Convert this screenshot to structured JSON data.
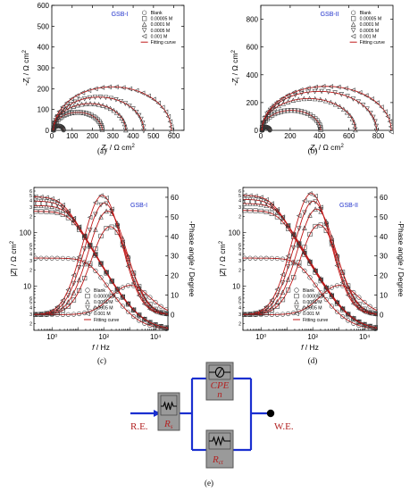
{
  "chart_data": [
    {
      "id": "a",
      "type": "scatter",
      "title": "GSB-I",
      "caption": "(a)",
      "xlim": [
        0,
        650
      ],
      "ylim": [
        0,
        600
      ],
      "xticks": [
        0,
        100,
        200,
        300,
        400,
        500,
        600
      ],
      "yticks": [
        0,
        100,
        200,
        300,
        400,
        500,
        600
      ],
      "xlabel": {
        "base": "Z",
        "sub": "r",
        "rest": " / Ω cm",
        "sup": "2"
      },
      "ylabel": {
        "base": "-Z",
        "sub": "i",
        "rest": " / Ω cm",
        "sup": "2"
      },
      "legend": [
        "Blank",
        "0.00005 M",
        "0.0001 M",
        "0.0005 M",
        "0.001 M",
        "Fitting curve"
      ],
      "series": [
        {
          "x0": 8,
          "r": 25,
          "depress": 0.85
        },
        {
          "x0": 8,
          "r": 120,
          "depress": 0.72
        },
        {
          "x0": 8,
          "r": 178,
          "depress": 0.72
        },
        {
          "x0": 8,
          "r": 222,
          "depress": 0.72
        },
        {
          "x0": 8,
          "r": 290,
          "depress": 0.72
        }
      ]
    },
    {
      "id": "b",
      "type": "scatter",
      "title": "GSB-II",
      "caption": "(b)",
      "xlim": [
        0,
        900
      ],
      "ylim": [
        0,
        900
      ],
      "xticks": [
        0,
        200,
        400,
        600,
        800
      ],
      "yticks": [
        0,
        200,
        400,
        600,
        800
      ],
      "xlabel": {
        "base": "Z",
        "sub": "r",
        "rest": " / Ω cm",
        "sup": "2"
      },
      "ylabel": {
        "base": "-Z",
        "sub": "i",
        "rest": " / Ω cm",
        "sup": "2"
      },
      "legend": [
        "Blank",
        "0.00005 M",
        "0.0001 M",
        "0.0005 M",
        "0.001 M",
        "Fitting curve"
      ],
      "series": [
        {
          "x0": 8,
          "r": 27,
          "depress": 0.85
        },
        {
          "x0": 8,
          "r": 200,
          "depress": 0.72
        },
        {
          "x0": 8,
          "r": 318,
          "depress": 0.72
        },
        {
          "x0": 8,
          "r": 390,
          "depress": 0.72
        },
        {
          "x0": 8,
          "r": 440,
          "depress": 0.72
        }
      ]
    },
    {
      "id": "c",
      "type": "line",
      "title": "GSB-I",
      "caption": "(c)",
      "xlog": true,
      "xlim": [
        0.2,
        30000
      ],
      "ylog": true,
      "ylim": [
        1.5,
        700
      ],
      "y2lim": [
        -8,
        65
      ],
      "xticks": [
        1,
        100,
        10000
      ],
      "xtick_labels": [
        "10⁰",
        "10²",
        "10⁴"
      ],
      "yticks": [
        10,
        100
      ],
      "ytick_labels": [
        "10",
        "100"
      ],
      "y2ticks": [
        0,
        10,
        20,
        30,
        40,
        50,
        60
      ],
      "xlabel": {
        "base": "f",
        "rest": " / Hz"
      },
      "ylabel": {
        "base": "|Z|",
        "rest": " / Ω cm",
        "sup": "2"
      },
      "y2label": "-Phase angle / Degree",
      "legend": [
        "Blank",
        "0.00005 M",
        "0.0001 M",
        "0.0005 M",
        "0.001 M",
        "Fitting curve"
      ],
      "series": [
        {
          "R": 32,
          "fc": 30,
          "pk": 15
        },
        {
          "R": 250,
          "fc": 5,
          "pk": 45
        },
        {
          "R": 320,
          "fc": 4,
          "pk": 53
        },
        {
          "R": 390,
          "fc": 3,
          "pk": 57
        },
        {
          "R": 470,
          "fc": 2.5,
          "pk": 61
        }
      ]
    },
    {
      "id": "d",
      "type": "line",
      "title": "GSB-II",
      "caption": "(d)",
      "xlog": true,
      "xlim": [
        0.2,
        30000
      ],
      "ylog": true,
      "ylim": [
        1.5,
        700
      ],
      "y2lim": [
        -8,
        65
      ],
      "xticks": [
        1,
        100,
        10000
      ],
      "xtick_labels": [
        "10⁰",
        "10²",
        "10⁴"
      ],
      "yticks": [
        10,
        100
      ],
      "ytick_labels": [
        "10",
        "100"
      ],
      "y2ticks": [
        0,
        10,
        20,
        30,
        40,
        50,
        60
      ],
      "xlabel": {
        "base": "f",
        "rest": " / Hz"
      },
      "ylabel": {
        "base": "|Z|",
        "rest": " / Ω cm",
        "sup": "2"
      },
      "y2label": "-Phase angle / Degree",
      "legend": [
        "Blank",
        "0.00005 M",
        "0.0001 M",
        "0.0005 M",
        "0.001 M",
        "Fitting curve"
      ],
      "series": [
        {
          "R": 32,
          "fc": 30,
          "pk": 15
        },
        {
          "R": 260,
          "fc": 5,
          "pk": 46
        },
        {
          "R": 350,
          "fc": 4,
          "pk": 54
        },
        {
          "R": 420,
          "fc": 3,
          "pk": 58
        },
        {
          "R": 500,
          "fc": 2.5,
          "pk": 62
        }
      ]
    }
  ],
  "circuit": {
    "caption": "(e)",
    "re_label": "R.E.",
    "we_label": "W.E.",
    "rs_label": "R",
    "rs_sub": "s",
    "cpe_label": "CPE",
    "n_label": "n",
    "rct_label": "R",
    "rct_sub": "ct",
    "colors": {
      "wire": "#1a2fd0",
      "box": "#9a9a9a",
      "text": "#b22222"
    }
  },
  "colors": {
    "fit": "#c01818",
    "marker": "#333333",
    "title": "#2233cc"
  }
}
